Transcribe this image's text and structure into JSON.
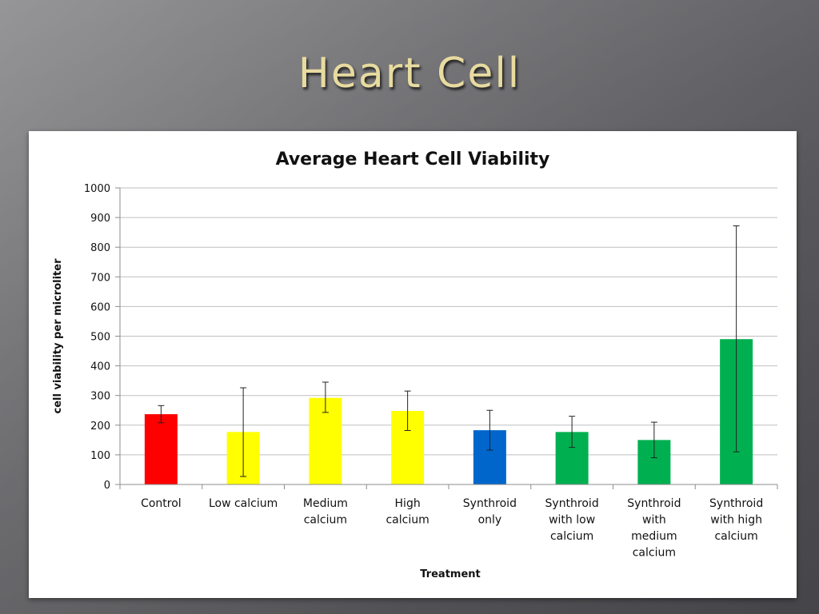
{
  "slide": {
    "title": "Heart Cell"
  },
  "chart_data": {
    "type": "bar",
    "title": "Average Heart Cell Viability",
    "xlabel": "Treatment",
    "ylabel": "cell viability per microliter",
    "ylim": [
      0,
      1000
    ],
    "yticks": [
      0,
      100,
      200,
      300,
      400,
      500,
      600,
      700,
      800,
      900,
      1000
    ],
    "grid": "horizontal",
    "legend": "none",
    "categories": [
      [
        "Control"
      ],
      [
        "Low calcium"
      ],
      [
        "Medium",
        "calcium"
      ],
      [
        "High",
        "calcium"
      ],
      [
        "Synthroid",
        "only"
      ],
      [
        "Synthroid",
        "with low",
        "calcium"
      ],
      [
        "Synthroid",
        "with",
        "medium",
        "calcium"
      ],
      [
        "Synthroid",
        "with high",
        "calcium"
      ]
    ],
    "values": [
      237,
      177,
      292,
      248,
      183,
      177,
      150,
      490
    ],
    "error_low": [
      208,
      27,
      243,
      182,
      116,
      125,
      90,
      110
    ],
    "error_high": [
      266,
      326,
      345,
      315,
      250,
      230,
      210,
      872
    ],
    "colors": [
      "#ff0000",
      "#ffff00",
      "#ffff00",
      "#ffff00",
      "#0066cc",
      "#00b050",
      "#00b050",
      "#00b050"
    ]
  }
}
